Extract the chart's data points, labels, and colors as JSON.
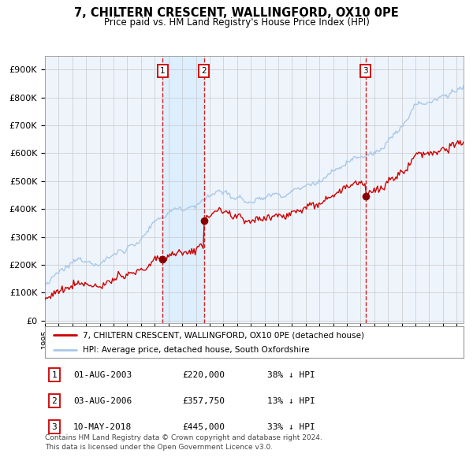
{
  "title": "7, CHILTERN CRESCENT, WALLINGFORD, OX10 0PE",
  "subtitle": "Price paid vs. HM Land Registry's House Price Index (HPI)",
  "ylabel_ticks": [
    "£0",
    "£100K",
    "£200K",
    "£300K",
    "£400K",
    "£500K",
    "£600K",
    "£700K",
    "£800K",
    "£900K"
  ],
  "ytick_vals": [
    0,
    100000,
    200000,
    300000,
    400000,
    500000,
    600000,
    700000,
    800000,
    900000
  ],
  "ylim": [
    -10000,
    950000
  ],
  "hpi_color": "#aac8e8",
  "price_color": "#cc0000",
  "vline_color": "#cc0000",
  "shade_color": "#ddeeff",
  "bg_color": "#ffffff",
  "plot_bg_color": "#eef4fb",
  "grid_color": "#c8c8c8",
  "transactions": [
    {
      "date_num": 2003.58,
      "price": 220000,
      "label": "1"
    },
    {
      "date_num": 2006.58,
      "price": 357750,
      "label": "2"
    },
    {
      "date_num": 2018.36,
      "price": 445000,
      "label": "3"
    }
  ],
  "legend_entries": [
    "7, CHILTERN CRESCENT, WALLINGFORD, OX10 0PE (detached house)",
    "HPI: Average price, detached house, South Oxfordshire"
  ],
  "table_rows": [
    [
      "1",
      "01-AUG-2003",
      "£220,000",
      "38% ↓ HPI"
    ],
    [
      "2",
      "03-AUG-2006",
      "£357,750",
      "13% ↓ HPI"
    ],
    [
      "3",
      "10-MAY-2018",
      "£445,000",
      "33% ↓ HPI"
    ]
  ],
  "footer": "Contains HM Land Registry data © Crown copyright and database right 2024.\nThis data is licensed under the Open Government Licence v3.0.",
  "xstart": 1995.0,
  "xend": 2025.5
}
